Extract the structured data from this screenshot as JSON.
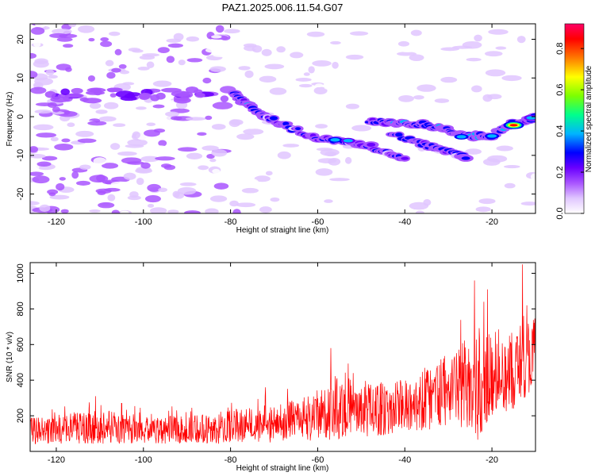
{
  "title": "PAZ1.2025.006.11.54.G07",
  "chart_data": [
    {
      "type": "heatmap",
      "xlabel": "Height of straight line (km)",
      "ylabel": "Frequency (Hz)",
      "colorbar_label": "Normalized spectral amplitude",
      "xlim": [
        -126,
        -10
      ],
      "ylim": [
        -25,
        24
      ],
      "x_ticks": [
        -120,
        -100,
        -80,
        -60,
        -40,
        -20
      ],
      "y_ticks": [
        -20,
        -10,
        0,
        10,
        20
      ],
      "colorbar_range": [
        0,
        0.92
      ],
      "colorbar_ticks": [
        0,
        0.2,
        0.4,
        0.6,
        0.8
      ],
      "colorscale": [
        "#ffffff",
        "#e0c6ff",
        "#a955ff",
        "#6a00ff",
        "#0000ff",
        "#00b4ff",
        "#00ff8c",
        "#7dff00",
        "#ffff00",
        "#ff7a00",
        "#ff0000",
        "#ff0066"
      ],
      "features": [
        {
          "name": "main track",
          "points": [
            [
              -79,
              5.5
            ],
            [
              -76,
              3
            ],
            [
              -72,
              0
            ],
            [
              -66,
              -3
            ],
            [
              -60,
              -5.5
            ],
            [
              -55,
              -6
            ],
            [
              -50,
              -7
            ],
            [
              -44,
              -9
            ],
            [
              -40,
              -11
            ]
          ]
        },
        {
          "name": "upper track",
          "points": [
            [
              -48,
              -1
            ],
            [
              -42,
              -1.5
            ],
            [
              -36,
              -2
            ],
            [
              -30,
              -3.5
            ],
            [
              -25,
              -5
            ],
            [
              -20,
              -5
            ],
            [
              -16,
              -2
            ],
            [
              -12,
              -1
            ],
            [
              -10,
              0
            ]
          ]
        },
        {
          "name": "lower track",
          "points": [
            [
              -43,
              -4.5
            ],
            [
              -37,
              -6.5
            ],
            [
              -33,
              -8
            ],
            [
              -28,
              -9.5
            ],
            [
              -26,
              -11
            ]
          ]
        },
        {
          "name": "peak",
          "points": [
            [
              -15,
              -2.2
            ]
          ]
        }
      ]
    },
    {
      "type": "line",
      "xlabel": "Height of straight line (km)",
      "ylabel": "SNR (10 * v/v)",
      "xlim": [
        -126,
        -10
      ],
      "ylim": [
        0,
        1060
      ],
      "x_ticks": [
        -120,
        -100,
        -80,
        -60,
        -40,
        -20
      ],
      "y_ticks": [
        200,
        400,
        600,
        800,
        1000
      ],
      "color": "#ff0000",
      "envelope": {
        "x": [
          -126,
          -110,
          -100,
          -90,
          -80,
          -75,
          -70,
          -60,
          -55,
          -50,
          -45,
          -40,
          -35,
          -30,
          -25,
          -23,
          -20,
          -15,
          -13,
          -12,
          -10
        ],
        "min": [
          40,
          40,
          40,
          45,
          40,
          50,
          50,
          60,
          70,
          80,
          90,
          110,
          120,
          140,
          130,
          40,
          180,
          230,
          300,
          290,
          420
        ],
        "max": [
          240,
          300,
          260,
          250,
          300,
          330,
          330,
          420,
          580,
          470,
          500,
          510,
          620,
          690,
          880,
          960,
          900,
          770,
          1050,
          830,
          920
        ]
      },
      "spikes": [
        [
          -111,
          310
        ],
        [
          -105,
          270
        ],
        [
          -72,
          360
        ],
        [
          -57,
          580
        ],
        [
          -24,
          960
        ],
        [
          -21,
          910
        ],
        [
          -13,
          1050
        ],
        [
          -12,
          820
        ]
      ]
    }
  ]
}
